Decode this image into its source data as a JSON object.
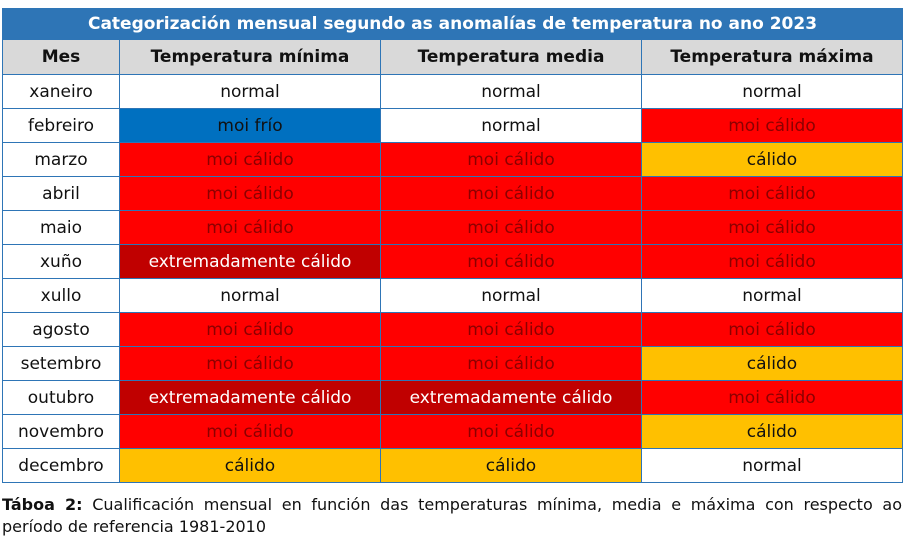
{
  "table": {
    "title": "Categorización mensual segundo as anomalías de temperatura no ano 2023",
    "headers": [
      "Mes",
      "Temperatura mínima",
      "Temperatura media",
      "Temperatura máxima"
    ],
    "rows": [
      {
        "month": "xaneiro",
        "min": "normal",
        "mean": "normal",
        "max": "normal"
      },
      {
        "month": "febreiro",
        "min": "moi frío",
        "mean": "normal",
        "max": "moi cálido"
      },
      {
        "month": "marzo",
        "min": "moi cálido",
        "mean": "moi cálido",
        "max": "cálido"
      },
      {
        "month": "abril",
        "min": "moi cálido",
        "mean": "moi cálido",
        "max": "moi cálido"
      },
      {
        "month": "maio",
        "min": "moi cálido",
        "mean": "moi cálido",
        "max": "moi cálido"
      },
      {
        "month": "xuño",
        "min": "extremadamente cálido",
        "mean": "moi cálido",
        "max": "moi cálido"
      },
      {
        "month": "xullo",
        "min": "normal",
        "mean": "normal",
        "max": "normal"
      },
      {
        "month": "agosto",
        "min": "moi cálido",
        "mean": "moi cálido",
        "max": "moi cálido"
      },
      {
        "month": "setembro",
        "min": "moi cálido",
        "mean": "moi cálido",
        "max": "cálido"
      },
      {
        "month": "outubro",
        "min": "extremadamente cálido",
        "mean": "extremadamente cálido",
        "max": "moi cálido"
      },
      {
        "month": "novembro",
        "min": "moi cálido",
        "mean": "moi cálido",
        "max": "cálido"
      },
      {
        "month": "decembro",
        "min": "cálido",
        "mean": "cálido",
        "max": "normal"
      }
    ]
  },
  "colors": {
    "header_blue": "#2e75b6",
    "normal": "#ffffff",
    "moi_frio": "#0070c0",
    "moi_calido": "#ff0000",
    "calido": "#ffc000",
    "extremadamente_calido": "#c00000"
  },
  "caption": {
    "label": "Táboa 2:",
    "text": " Cualificación mensual en función das temperaturas mínima, media e máxima con respecto ao período de referencia 1981-2010"
  }
}
